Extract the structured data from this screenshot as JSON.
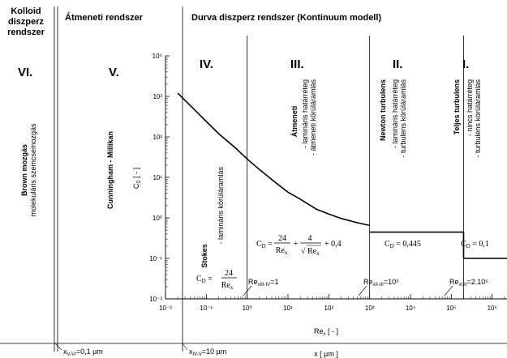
{
  "header": {
    "colloid_line1": "Kolloid",
    "colloid_line2": "diszperz",
    "colloid_line3": "rendszer",
    "transition": "Átmeneti rendszer",
    "coarse": "Durva diszperz rendszer (Kontinuum modell)"
  },
  "regions": [
    {
      "roman": "VI.",
      "title": "Brown mozgás",
      "sub1": "molekuláris szemcsemozgás"
    },
    {
      "roman": "V.",
      "title": "Cunningham - Millikan"
    },
    {
      "roman": "IV.",
      "title": "Stokes",
      "sub1": "- lamináris körüláramlás",
      "formula_lhs": "C",
      "formula_sub": "D",
      "formula_num": "24",
      "formula_den": "Re",
      "formula_den_sub": "x"
    },
    {
      "roman": "III.",
      "title": "Átmeneti",
      "sub1": "- lamináris határréteg",
      "sub2": "- átmeneti körüláramlás",
      "formula": "C_D = 24/Re_x + 4/√Re_x + 0,4"
    },
    {
      "roman": "II.",
      "title": "Newton turbulens",
      "sub1": "- lamináris határréteg",
      "sub2": "- turbulens körüláramlás",
      "formula": "C_D = 0,445"
    },
    {
      "roman": "I.",
      "title": "Teljes turbulens",
      "sub1": "- nincs határréteg",
      "sub2": "- turbulens körüláramlás",
      "formula": "C_D = 0,1"
    }
  ],
  "boundaries": {
    "re_iii_iv": "Re",
    "re_iii_iv_sub": "xIII-IV",
    "re_iii_iv_val": "=1",
    "re_ii_iii": "Re",
    "re_ii_iii_sub": "xII-III",
    "re_ii_iii_val": "=10³",
    "re_i_ii": "Re",
    "re_i_ii_sub": "xI-II",
    "re_i_ii_val": "=2.10⁵",
    "x_v_vi": "x",
    "x_v_vi_sub": "V-VI",
    "x_v_vi_val": "=0,1 µm",
    "x_iv_v": "x",
    "x_iv_v_sub": "IV-V",
    "x_iv_v_val": "=10 µm",
    "x_axis_label": "x [ µm ]"
  },
  "chart_data": {
    "type": "line",
    "title": "",
    "xlabel": "Re_x [ - ]",
    "ylabel": "C_D [ - ]",
    "x_scale": "log",
    "y_scale": "log",
    "xlim": [
      0.01,
      10000000
    ],
    "ylim": [
      0.01,
      10000
    ],
    "x_ticks": [
      "10⁻²",
      "10⁻¹",
      "10⁰",
      "10¹",
      "10²",
      "10³",
      "10⁴",
      "10⁵",
      "10⁶"
    ],
    "y_ticks": [
      "10⁻²",
      "10⁻¹",
      "10⁰",
      "10¹",
      "10²",
      "10³",
      "10⁴"
    ],
    "series": [
      {
        "segment": "curve",
        "x": [
          0.02,
          0.03,
          0.05,
          0.1,
          0.2,
          0.5,
          1,
          2,
          5,
          10,
          20,
          50,
          100,
          200,
          500,
          1000
        ],
        "y": [
          1200,
          800,
          480,
          240,
          120,
          55,
          28.4,
          15.6,
          7.4,
          4.3,
          2.9,
          1.63,
          1.24,
          0.97,
          0.76,
          0.65
        ]
      },
      {
        "segment": "newton",
        "x": [
          1000,
          200000
        ],
        "y": [
          0.445,
          0.445
        ]
      },
      {
        "segment": "full-turbulent",
        "x": [
          200000,
          10000000
        ],
        "y": [
          0.1,
          0.1
        ]
      }
    ]
  },
  "colors": {
    "ink": "#000000",
    "background": "#ffffff"
  }
}
